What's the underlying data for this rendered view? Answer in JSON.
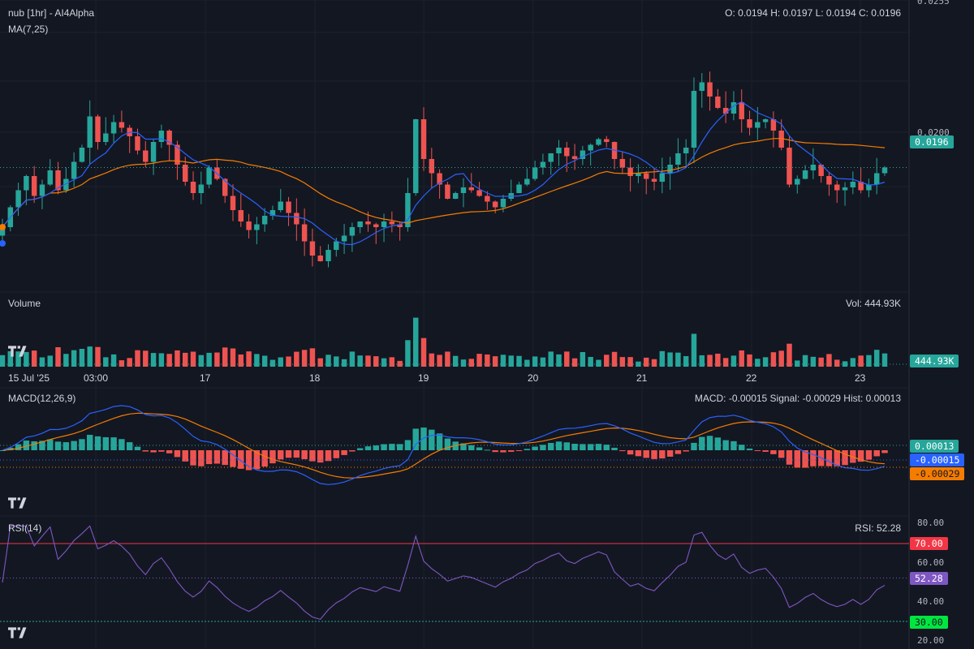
{
  "header": {
    "title": "nub [1hr] - AI4Alpha",
    "ma_label": "MA(7,25)",
    "ohlc": "O: 0.0194 H: 0.0197 L: 0.0194 C: 0.0196"
  },
  "volume_panel": {
    "label": "Volume",
    "value_label": "Vol: 444.93K",
    "tag": "444.93K"
  },
  "macd_panel": {
    "label": "MACD(12,26,9)",
    "value_label": "MACD: -0.00015 Signal: -0.00029 Hist: 0.00013",
    "tags": {
      "hist": "0.00013",
      "macd": "-0.00015",
      "signal": "-0.00029"
    }
  },
  "rsi_panel": {
    "label": "RSI(14)",
    "value_label": "RSI: 52.28",
    "tags": {
      "upper": "70.00",
      "current": "52.28",
      "lower": "30.00"
    },
    "axis": [
      "80.00",
      "60.00",
      "40.00",
      "20.00"
    ]
  },
  "price_axis": {
    "ticks": [
      "0.0255",
      "0.0200"
    ],
    "last_tag": "0.0196"
  },
  "time_axis": {
    "labels": [
      "15 Jul '25",
      "03:00",
      "17",
      "18",
      "19",
      "20",
      "21",
      "22",
      "23"
    ]
  },
  "colors": {
    "background": "#131722",
    "up": "#26a69a",
    "down": "#ef5350",
    "ma_fast": "#2962ff",
    "ma_slow": "#f57c00",
    "rsi": "#7e57c2",
    "rsi_upper": "#f23645",
    "rsi_lower": "#22ab94"
  },
  "chart_data": [
    {
      "type": "candlestick",
      "title": "nub [1hr] - AI4Alpha",
      "x_labels": [
        "15 Jul '25",
        "03:00",
        "17",
        "18",
        "19",
        "20",
        "21",
        "22",
        "23"
      ],
      "close": [
        0.0175,
        0.0182,
        0.0188,
        0.0193,
        0.0186,
        0.019,
        0.0195,
        0.0188,
        0.0192,
        0.0198,
        0.0203,
        0.0214,
        0.0205,
        0.0208,
        0.0212,
        0.021,
        0.0207,
        0.0202,
        0.0198,
        0.0205,
        0.0209,
        0.0204,
        0.0197,
        0.0191,
        0.0187,
        0.019,
        0.0196,
        0.0192,
        0.0186,
        0.0181,
        0.0177,
        0.0174,
        0.0176,
        0.0179,
        0.0181,
        0.0184,
        0.018,
        0.0176,
        0.017,
        0.0165,
        0.0163,
        0.0167,
        0.017,
        0.0172,
        0.0175,
        0.0177,
        0.0176,
        0.0175,
        0.0177,
        0.0176,
        0.0175,
        0.0187,
        0.0213,
        0.0199,
        0.0194,
        0.019,
        0.0185,
        0.0187,
        0.0189,
        0.0188,
        0.0186,
        0.0184,
        0.0182,
        0.0185,
        0.0187,
        0.019,
        0.0192,
        0.0196,
        0.0198,
        0.0201,
        0.0203,
        0.02,
        0.0199,
        0.0202,
        0.0204,
        0.0206,
        0.0205,
        0.0199,
        0.0196,
        0.0193,
        0.0194,
        0.0192,
        0.0191,
        0.0194,
        0.0197,
        0.0201,
        0.0203,
        0.0223,
        0.0226,
        0.0221,
        0.0217,
        0.0215,
        0.0219,
        0.0213,
        0.021,
        0.0212,
        0.0213,
        0.0209,
        0.0203,
        0.019,
        0.0192,
        0.0195,
        0.0197,
        0.0193,
        0.019,
        0.0188,
        0.0189,
        0.0191,
        0.0188,
        0.019,
        0.0194,
        0.0196
      ],
      "ma_fast_period": 7,
      "ma_slow_period": 25,
      "last_close": 0.0196,
      "last": {
        "open": 0.0194,
        "high": 0.0197,
        "low": 0.0194,
        "close": 0.0196
      },
      "volume_last": "444.93K",
      "ylim": [
        0.0155,
        0.0255
      ]
    },
    {
      "type": "line",
      "title": "MACD(12,26,9)",
      "series": [
        {
          "name": "MACD"
        },
        {
          "name": "Signal"
        },
        {
          "name": "Hist"
        }
      ],
      "last": {
        "macd": -0.00015,
        "signal": -0.00029,
        "hist": 0.00013
      }
    },
    {
      "type": "line",
      "title": "RSI(14)",
      "levels": [
        70,
        30
      ],
      "last": 52.28,
      "ylim": [
        20,
        80
      ]
    }
  ]
}
